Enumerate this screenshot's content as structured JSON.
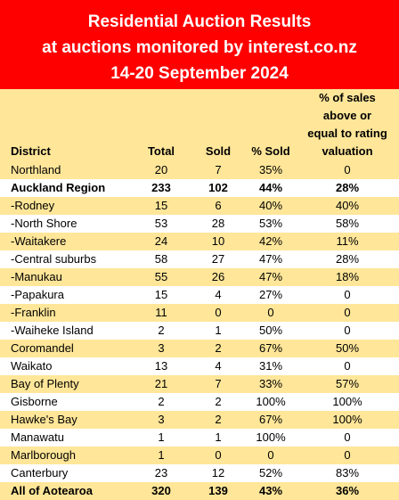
{
  "title": {
    "line1": "Residential Auction Results",
    "line2": "at auctions monitored by interest.co.nz",
    "line3": "14-20 September 2024"
  },
  "colors": {
    "banner": "#ff0000",
    "banner_text": "#ffffff",
    "row_yellow": "#ffe699",
    "row_white": "#ffffff"
  },
  "headers": {
    "district": "District",
    "total": "Total",
    "sold": "Sold",
    "pct_sold": "% Sold",
    "valuation_line1": "% of sales",
    "valuation_line2": "above or",
    "valuation_line3": "equal to rating",
    "valuation_line4": "valuation"
  },
  "rows": [
    {
      "district": "Northland",
      "total": "20",
      "sold": "7",
      "pct_sold": "35%",
      "valuation": "0"
    },
    {
      "district": "Auckland Region",
      "total": "233",
      "sold": "102",
      "pct_sold": "44%",
      "valuation": "28%"
    },
    {
      "district": "-Rodney",
      "total": "15",
      "sold": "6",
      "pct_sold": "40%",
      "valuation": "40%"
    },
    {
      "district": "-North Shore",
      "total": "53",
      "sold": "28",
      "pct_sold": "53%",
      "valuation": "58%"
    },
    {
      "district": "-Waitakere",
      "total": "24",
      "sold": "10",
      "pct_sold": "42%",
      "valuation": "11%"
    },
    {
      "district": "-Central suburbs",
      "total": "58",
      "sold": "27",
      "pct_sold": "47%",
      "valuation": "28%"
    },
    {
      "district": "-Manukau",
      "total": "55",
      "sold": "26",
      "pct_sold": "47%",
      "valuation": "18%"
    },
    {
      "district": "-Papakura",
      "total": "15",
      "sold": "4",
      "pct_sold": "27%",
      "valuation": "0"
    },
    {
      "district": "-Franklin",
      "total": "11",
      "sold": "0",
      "pct_sold": "0",
      "valuation": "0"
    },
    {
      "district": "-Waiheke Island",
      "total": "2",
      "sold": "1",
      "pct_sold": "50%",
      "valuation": "0"
    },
    {
      "district": "Coromandel",
      "total": "3",
      "sold": "2",
      "pct_sold": "67%",
      "valuation": "50%"
    },
    {
      "district": "Waikato",
      "total": "13",
      "sold": "4",
      "pct_sold": "31%",
      "valuation": "0"
    },
    {
      "district": "Bay of Plenty",
      "total": "21",
      "sold": "7",
      "pct_sold": "33%",
      "valuation": "57%"
    },
    {
      "district": "Gisborne",
      "total": "2",
      "sold": "2",
      "pct_sold": "100%",
      "valuation": "100%"
    },
    {
      "district": "Hawke's Bay",
      "total": "3",
      "sold": "2",
      "pct_sold": "67%",
      "valuation": "100%"
    },
    {
      "district": "Manawatu",
      "total": "1",
      "sold": "1",
      "pct_sold": "100%",
      "valuation": "0"
    },
    {
      "district": "Marlborough",
      "total": "1",
      "sold": "0",
      "pct_sold": "0",
      "valuation": "0"
    },
    {
      "district": "Canterbury",
      "total": "23",
      "sold": "12",
      "pct_sold": "52%",
      "valuation": "83%"
    },
    {
      "district": "All of Aotearoa",
      "total": "320",
      "sold": "139",
      "pct_sold": "43%",
      "valuation": "36%"
    }
  ]
}
